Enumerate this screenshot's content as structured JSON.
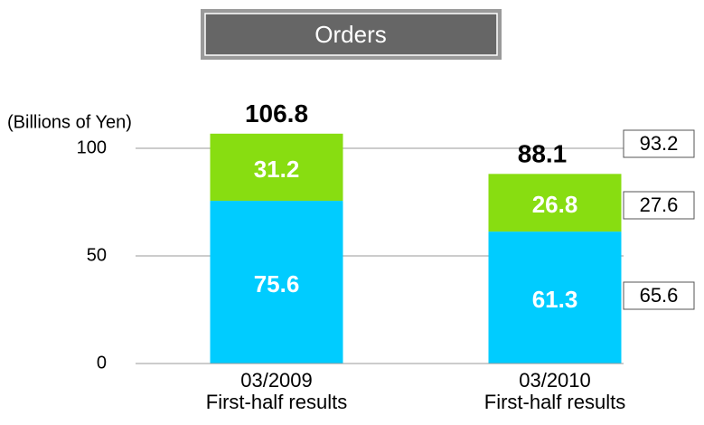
{
  "chart_data": {
    "type": "stacked_bar",
    "title": "Orders",
    "y_label": "(Billions of Yen)",
    "categories": [
      [
        "03/2009",
        "First-half results"
      ],
      [
        "03/2010",
        "First-half results"
      ]
    ],
    "series": [
      {
        "color": "#00ccff",
        "values": [
          75.6,
          61.3
        ]
      },
      {
        "color": "#88dd11",
        "values": [
          31.2,
          26.8
        ]
      }
    ],
    "totals": [
      106.8,
      88.1
    ],
    "boxed_values": [
      93.2,
      27.6,
      65.6
    ],
    "ylim": [
      0,
      100
    ],
    "yticks": [
      0,
      50,
      100
    ],
    "grid": true
  }
}
